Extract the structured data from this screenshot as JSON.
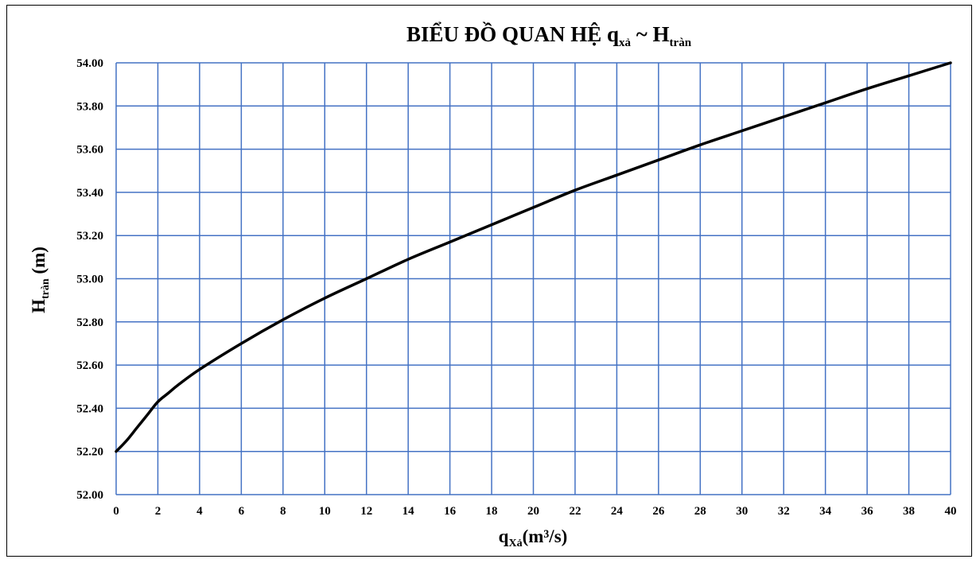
{
  "chart_data": {
    "type": "line",
    "title": {
      "main": "BIỂU ĐỒ QUAN HỆ q",
      "sub1": "xả",
      "mid": " ~ H",
      "sub2": "tràn"
    },
    "xlabel": {
      "main": "q",
      "sub": "Xả",
      "rest": "(m³/s)"
    },
    "ylabel": {
      "main": "H",
      "sub": "tràn",
      "rest": " (m)"
    },
    "xlim": [
      0,
      40
    ],
    "ylim": [
      52.0,
      54.0
    ],
    "xticks": [
      0,
      2,
      4,
      6,
      8,
      10,
      12,
      14,
      16,
      18,
      20,
      22,
      24,
      26,
      28,
      30,
      32,
      34,
      36,
      38,
      40
    ],
    "yticks": [
      "52.00",
      "52.20",
      "52.40",
      "52.60",
      "52.80",
      "53.00",
      "53.20",
      "53.40",
      "53.60",
      "53.80",
      "54.00"
    ],
    "grid": true,
    "grid_color": "#4472c4",
    "line_color": "#000000",
    "series": [
      {
        "x": [
          0,
          0.5,
          1,
          1.5,
          2,
          2.5,
          3,
          4,
          6,
          8,
          10,
          12,
          14,
          16,
          18,
          20,
          22,
          24,
          26,
          28,
          30,
          32,
          34,
          36,
          38,
          40
        ],
        "y": [
          52.2,
          52.25,
          52.31,
          52.37,
          52.43,
          52.47,
          52.51,
          52.58,
          52.7,
          52.81,
          52.91,
          53.0,
          53.09,
          53.17,
          53.25,
          53.33,
          53.41,
          53.48,
          53.55,
          53.62,
          53.685,
          53.75,
          53.815,
          53.88,
          53.94,
          54.0
        ]
      }
    ]
  }
}
